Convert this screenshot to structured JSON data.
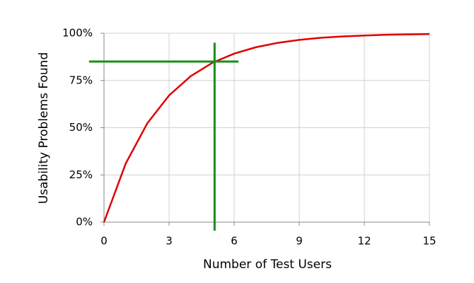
{
  "chart_data": {
    "type": "line",
    "x_label": "Number of Test Users",
    "y_label": "Usability Problems Found",
    "x": [
      0,
      1,
      2,
      3,
      4,
      5,
      6,
      7,
      8,
      9,
      10,
      11,
      12,
      13,
      14,
      15
    ],
    "series": [
      {
        "color": "#e00000",
        "values": [
          0,
          31,
          52.4,
          67.1,
          77.3,
          84.4,
          89.2,
          92.6,
          94.9,
          96.5,
          97.6,
          98.3,
          98.8,
          99.2,
          99.4,
          99.6
        ]
      }
    ],
    "xlim": [
      0,
      15
    ],
    "xticks": [
      0,
      3,
      6,
      9,
      12,
      15
    ],
    "ylim": [
      0,
      100
    ],
    "yticks": [
      {
        "value": 0,
        "label": "0%"
      },
      {
        "value": 25,
        "label": "25%"
      },
      {
        "value": 50,
        "label": "50%"
      },
      {
        "value": 75,
        "label": "75%"
      },
      {
        "value": 100,
        "label": "100%"
      }
    ],
    "grid": true,
    "reference_lines": {
      "color": "#1a8c1a",
      "x": 5,
      "y": 85
    }
  }
}
